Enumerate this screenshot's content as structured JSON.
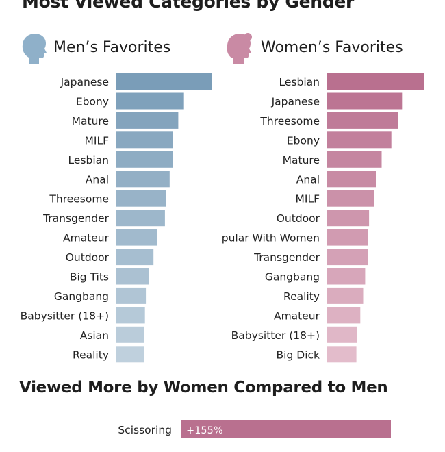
{
  "header": {
    "title": "Most Viewed Categories by Gender"
  },
  "colors": {
    "men_dark": "#7a9db8",
    "men_light": "#bfd0dd",
    "women_dark": "#b9708f",
    "women_light": "#e3bccb",
    "men_icon": "#8fb0c9",
    "women_icon": "#c98aa4"
  },
  "panels": {
    "men": {
      "title": "Men’s Favorites",
      "icon": "man-head-silhouette-icon"
    },
    "women": {
      "title": "Women’s Favorites",
      "icon": "woman-head-silhouette-icon"
    }
  },
  "section2": {
    "title": "Viewed More by Women Compared to Men"
  },
  "chart_data": [
    {
      "type": "bar",
      "orientation": "horizontal",
      "title": "Men’s Favorites",
      "categories": [
        "Japanese",
        "Ebony",
        "Mature",
        "MILF",
        "Lesbian",
        "Anal",
        "Threesome",
        "Transgender",
        "Amateur",
        "Outdoor",
        "Big Tits",
        "Gangbang",
        "Babysitter (18+)",
        "Asian",
        "Reality"
      ],
      "values": [
        100,
        71,
        65,
        59,
        59,
        56,
        52,
        51,
        43,
        39,
        34,
        31,
        30,
        29,
        29
      ],
      "xlabel": "",
      "ylabel": "",
      "grid": false
    },
    {
      "type": "bar",
      "orientation": "horizontal",
      "title": "Women’s Favorites",
      "categories": [
        "Lesbian",
        "Japanese",
        "Threesome",
        "Ebony",
        "Mature",
        "Anal",
        "MILF",
        "Outdoor",
        "Popular With Women",
        "Transgender",
        "Gangbang",
        "Reality",
        "Amateur",
        "Babysitter (18+)",
        "Big Dick"
      ],
      "values": [
        100,
        77,
        73,
        66,
        56,
        50,
        48,
        43,
        42,
        42,
        39,
        37,
        34,
        31,
        30
      ],
      "xlabel": "",
      "ylabel": "",
      "grid": false
    },
    {
      "type": "bar",
      "orientation": "horizontal",
      "title": "Viewed More by Women Compared to Men",
      "categories": [
        "Scissoring"
      ],
      "values": [
        155
      ],
      "value_labels": [
        "+155%"
      ],
      "xlabel": "",
      "ylabel": "",
      "grid": false
    }
  ]
}
